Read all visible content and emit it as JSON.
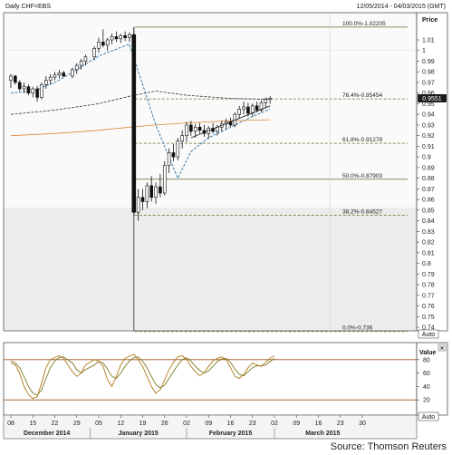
{
  "header": {
    "title": "Daily CHF=EBS",
    "date_range": "12/05/2014 - 04/03/2015 (GMT)"
  },
  "source": "Source: Thomson Reuters",
  "auto_label": "Auto",
  "price_panel": {
    "axis_title": "Price",
    "ticks": [
      "1.01",
      "1",
      "0.99",
      "0.98",
      "0.97",
      "0.96",
      "0.95",
      "0.94",
      "0.93",
      "0.92",
      "0.91",
      "0.9",
      "0.89",
      "0.88",
      "0.87",
      "0.86",
      "0.85",
      "0.84",
      "0.83",
      "0.82",
      "0.81",
      "0.8",
      "0.79",
      "0.78",
      "0.77",
      "0.76",
      "0.75",
      "0.74"
    ],
    "current_price_label": "0.9551"
  },
  "stoch_panel": {
    "axis_title": "Value",
    "ticks": [
      "80",
      "60",
      "40",
      "20"
    ]
  },
  "x_axis": {
    "day_ticks": [
      "08",
      "15",
      "22",
      "29",
      "05",
      "12",
      "19",
      "26",
      "02",
      "09",
      "16",
      "23",
      "02",
      "09",
      "16",
      "23",
      "30"
    ],
    "month_labels": [
      "December 2014",
      "January 2015",
      "February 2015",
      "March 2015"
    ]
  },
  "chart_data": {
    "type": "candlestick",
    "title": "Daily CHF=EBS",
    "ylabel": "Price",
    "ylim": [
      0.736,
      1.025
    ],
    "colors": {
      "up_candle": "#ffffff",
      "down_candle": "#111111",
      "short_ma": "#3f7fae",
      "long_ma": "#333333",
      "orange_ma": "#d98a3a",
      "fib_lines": "#6b6b2f",
      "stoch_k": "#b07a18",
      "stoch_d": "#7a7a20",
      "stoch_levels": "#a05020"
    },
    "candles": [
      {
        "date": "2014-12-08",
        "open": 0.972,
        "high": 0.978,
        "low": 0.965,
        "close": 0.976
      },
      {
        "date": "2014-12-09",
        "open": 0.976,
        "high": 0.977,
        "low": 0.968,
        "close": 0.97
      },
      {
        "date": "2014-12-10",
        "open": 0.97,
        "high": 0.972,
        "low": 0.962,
        "close": 0.964
      },
      {
        "date": "2014-12-11",
        "open": 0.964,
        "high": 0.97,
        "low": 0.96,
        "close": 0.966
      },
      {
        "date": "2014-12-12",
        "open": 0.966,
        "high": 0.968,
        "low": 0.958,
        "close": 0.96
      },
      {
        "date": "2014-12-15",
        "open": 0.96,
        "high": 0.966,
        "low": 0.956,
        "close": 0.964
      },
      {
        "date": "2014-12-16",
        "open": 0.964,
        "high": 0.967,
        "low": 0.952,
        "close": 0.956
      },
      {
        "date": "2014-12-17",
        "open": 0.956,
        "high": 0.97,
        "low": 0.954,
        "close": 0.968
      },
      {
        "date": "2014-12-18",
        "open": 0.968,
        "high": 0.976,
        "low": 0.964,
        "close": 0.972
      },
      {
        "date": "2014-12-19",
        "open": 0.972,
        "high": 0.978,
        "low": 0.968,
        "close": 0.975
      },
      {
        "date": "2014-12-22",
        "open": 0.975,
        "high": 0.98,
        "low": 0.972,
        "close": 0.977
      },
      {
        "date": "2014-12-23",
        "open": 0.977,
        "high": 0.982,
        "low": 0.974,
        "close": 0.979
      },
      {
        "date": "2014-12-24",
        "open": 0.979,
        "high": 0.981,
        "low": 0.975,
        "close": 0.976
      },
      {
        "date": "2014-12-26",
        "open": 0.976,
        "high": 0.984,
        "low": 0.974,
        "close": 0.982
      },
      {
        "date": "2014-12-29",
        "open": 0.982,
        "high": 0.988,
        "low": 0.978,
        "close": 0.986
      },
      {
        "date": "2014-12-30",
        "open": 0.986,
        "high": 0.992,
        "low": 0.982,
        "close": 0.99
      },
      {
        "date": "2014-12-31",
        "open": 0.99,
        "high": 0.996,
        "low": 0.986,
        "close": 0.994
      },
      {
        "date": "2015-01-02",
        "open": 0.994,
        "high": 1.004,
        "low": 0.991,
        "close": 1.002
      },
      {
        "date": "2015-01-05",
        "open": 1.002,
        "high": 1.012,
        "low": 0.998,
        "close": 1.008
      },
      {
        "date": "2015-01-06",
        "open": 1.008,
        "high": 1.02,
        "low": 1.003,
        "close": 1.005
      },
      {
        "date": "2015-01-07",
        "open": 1.005,
        "high": 1.012,
        "low": 1.0,
        "close": 1.01
      },
      {
        "date": "2015-01-08",
        "open": 1.01,
        "high": 1.016,
        "low": 1.006,
        "close": 1.013
      },
      {
        "date": "2015-01-09",
        "open": 1.013,
        "high": 1.018,
        "low": 1.008,
        "close": 1.011
      },
      {
        "date": "2015-01-12",
        "open": 1.011,
        "high": 1.016,
        "low": 1.007,
        "close": 1.014
      },
      {
        "date": "2015-01-13",
        "open": 1.014,
        "high": 1.018,
        "low": 1.009,
        "close": 1.012
      },
      {
        "date": "2015-01-14",
        "open": 1.012,
        "high": 1.017,
        "low": 1.008,
        "close": 1.015
      },
      {
        "date": "2015-01-15",
        "open": 1.015,
        "high": 1.022,
        "low": 0.845,
        "close": 0.848
      },
      {
        "date": "2015-01-16",
        "open": 0.848,
        "high": 0.87,
        "low": 0.84,
        "close": 0.862
      },
      {
        "date": "2015-01-19",
        "open": 0.862,
        "high": 0.87,
        "low": 0.85,
        "close": 0.858
      },
      {
        "date": "2015-01-20",
        "open": 0.858,
        "high": 0.876,
        "low": 0.852,
        "close": 0.873
      },
      {
        "date": "2015-01-21",
        "open": 0.873,
        "high": 0.882,
        "low": 0.858,
        "close": 0.862
      },
      {
        "date": "2015-01-22",
        "open": 0.862,
        "high": 0.876,
        "low": 0.856,
        "close": 0.872
      },
      {
        "date": "2015-01-23",
        "open": 0.872,
        "high": 0.884,
        "low": 0.862,
        "close": 0.866
      },
      {
        "date": "2015-01-26",
        "open": 0.866,
        "high": 0.896,
        "low": 0.864,
        "close": 0.892
      },
      {
        "date": "2015-01-27",
        "open": 0.892,
        "high": 0.908,
        "low": 0.885,
        "close": 0.904
      },
      {
        "date": "2015-01-28",
        "open": 0.904,
        "high": 0.912,
        "low": 0.896,
        "close": 0.9
      },
      {
        "date": "2015-01-29",
        "open": 0.9,
        "high": 0.918,
        "low": 0.897,
        "close": 0.915
      },
      {
        "date": "2015-01-30",
        "open": 0.915,
        "high": 0.925,
        "low": 0.908,
        "close": 0.92
      },
      {
        "date": "2015-02-02",
        "open": 0.92,
        "high": 0.933,
        "low": 0.914,
        "close": 0.93
      },
      {
        "date": "2015-02-03",
        "open": 0.93,
        "high": 0.934,
        "low": 0.92,
        "close": 0.924
      },
      {
        "date": "2015-02-04",
        "open": 0.924,
        "high": 0.931,
        "low": 0.918,
        "close": 0.928
      },
      {
        "date": "2015-02-05",
        "open": 0.928,
        "high": 0.932,
        "low": 0.922,
        "close": 0.925
      },
      {
        "date": "2015-02-06",
        "open": 0.925,
        "high": 0.93,
        "low": 0.919,
        "close": 0.922
      },
      {
        "date": "2015-02-09",
        "open": 0.922,
        "high": 0.929,
        "low": 0.917,
        "close": 0.927
      },
      {
        "date": "2015-02-10",
        "open": 0.927,
        "high": 0.932,
        "low": 0.922,
        "close": 0.924
      },
      {
        "date": "2015-02-11",
        "open": 0.924,
        "high": 0.93,
        "low": 0.92,
        "close": 0.928
      },
      {
        "date": "2015-02-12",
        "open": 0.928,
        "high": 0.934,
        "low": 0.924,
        "close": 0.931
      },
      {
        "date": "2015-02-13",
        "open": 0.931,
        "high": 0.936,
        "low": 0.926,
        "close": 0.933
      },
      {
        "date": "2015-02-16",
        "open": 0.933,
        "high": 0.937,
        "low": 0.928,
        "close": 0.93
      },
      {
        "date": "2015-02-17",
        "open": 0.93,
        "high": 0.942,
        "low": 0.928,
        "close": 0.94
      },
      {
        "date": "2015-02-18",
        "open": 0.94,
        "high": 0.948,
        "low": 0.936,
        "close": 0.945
      },
      {
        "date": "2015-02-19",
        "open": 0.945,
        "high": 0.952,
        "low": 0.94,
        "close": 0.947
      },
      {
        "date": "2015-02-20",
        "open": 0.947,
        "high": 0.951,
        "low": 0.938,
        "close": 0.941
      },
      {
        "date": "2015-02-23",
        "open": 0.941,
        "high": 0.95,
        "low": 0.938,
        "close": 0.948
      },
      {
        "date": "2015-02-24",
        "open": 0.948,
        "high": 0.952,
        "low": 0.942,
        "close": 0.944
      },
      {
        "date": "2015-02-25",
        "open": 0.944,
        "high": 0.953,
        "low": 0.942,
        "close": 0.951
      },
      {
        "date": "2015-02-26",
        "open": 0.951,
        "high": 0.956,
        "low": 0.946,
        "close": 0.954
      },
      {
        "date": "2015-02-27",
        "open": 0.954,
        "high": 0.957,
        "low": 0.95,
        "close": 0.955
      }
    ],
    "moving_averages": [
      {
        "name": "short",
        "color": "#3f7fae",
        "style": "dashed",
        "points": [
          [
            "2014-12-08",
            0.96
          ],
          [
            "2014-12-15",
            0.962
          ],
          [
            "2014-12-22",
            0.97
          ],
          [
            "2014-12-29",
            0.982
          ],
          [
            "2015-01-05",
            0.995
          ],
          [
            "2015-01-14",
            1.006
          ],
          [
            "2015-01-22",
            0.93
          ],
          [
            "2015-01-29",
            0.88
          ],
          [
            "2015-02-03",
            0.905
          ],
          [
            "2015-02-09",
            0.918
          ],
          [
            "2015-02-16",
            0.928
          ],
          [
            "2015-02-23",
            0.938
          ],
          [
            "2015-02-27",
            0.945
          ]
        ]
      },
      {
        "name": "long",
        "color": "#333333",
        "style": "dashed",
        "points": [
          [
            "2014-12-08",
            0.94
          ],
          [
            "2014-12-22",
            0.944
          ],
          [
            "2015-01-05",
            0.95
          ],
          [
            "2015-01-14",
            0.957
          ],
          [
            "2015-01-22",
            0.962
          ],
          [
            "2015-02-02",
            0.958
          ],
          [
            "2015-02-16",
            0.955
          ],
          [
            "2015-02-27",
            0.954
          ]
        ]
      },
      {
        "name": "orange",
        "color": "#d98a3a",
        "style": "solid",
        "points": [
          [
            "2014-12-08",
            0.92
          ],
          [
            "2014-12-22",
            0.922
          ],
          [
            "2015-01-05",
            0.925
          ],
          [
            "2015-01-14",
            0.928
          ],
          [
            "2015-01-22",
            0.93
          ],
          [
            "2015-02-02",
            0.932
          ],
          [
            "2015-02-16",
            0.934
          ],
          [
            "2015-02-27",
            0.935
          ]
        ]
      }
    ],
    "fibonacci": [
      {
        "label": "100.0%-1.02205",
        "value": 1.02205,
        "style": "solid"
      },
      {
        "label": "76.4%-0.95454",
        "value": 0.95454,
        "style": "dashed"
      },
      {
        "label": "61.8%-0.91278",
        "value": 0.91278,
        "style": "dashed"
      },
      {
        "label": "50.0%-0.87903",
        "value": 0.87903,
        "style": "solid"
      },
      {
        "label": "38.2%-0.84527",
        "value": 0.84527,
        "style": "dashed"
      },
      {
        "label": "0.0%-0.736",
        "value": 0.736,
        "style": "dashed"
      }
    ],
    "fib_range": {
      "start": "2015-01-15",
      "end": "2015-03-02"
    },
    "trendline": {
      "from": [
        "2015-02-03",
        0.918
      ],
      "to": [
        "2015-02-27",
        0.948
      ]
    },
    "stochastic": {
      "ylim": [
        0,
        100
      ],
      "levels": [
        80,
        20
      ],
      "k": [
        75,
        72,
        60,
        40,
        28,
        22,
        25,
        45,
        68,
        80,
        83,
        86,
        82,
        62,
        55,
        60,
        72,
        80,
        78,
        70,
        50,
        40,
        55,
        72,
        82,
        85,
        88,
        80,
        70,
        55,
        40,
        30,
        35,
        50,
        65,
        76,
        84,
        86,
        80,
        70,
        62,
        56,
        60,
        70,
        78,
        82,
        84,
        80,
        68,
        55,
        52,
        58,
        68,
        75,
        72,
        70,
        76,
        82,
        86
      ],
      "d": [
        78,
        75,
        68,
        55,
        40,
        30,
        27,
        35,
        52,
        68,
        78,
        83,
        84,
        75,
        65,
        60,
        65,
        72,
        77,
        75,
        66,
        55,
        52,
        60,
        70,
        78,
        83,
        84,
        78,
        68,
        55,
        43,
        38,
        42,
        52,
        62,
        72,
        80,
        83,
        78,
        70,
        64,
        60,
        63,
        70,
        77,
        81,
        82,
        76,
        66,
        58,
        56,
        62,
        68,
        71,
        71,
        72,
        77,
        82
      ]
    }
  }
}
